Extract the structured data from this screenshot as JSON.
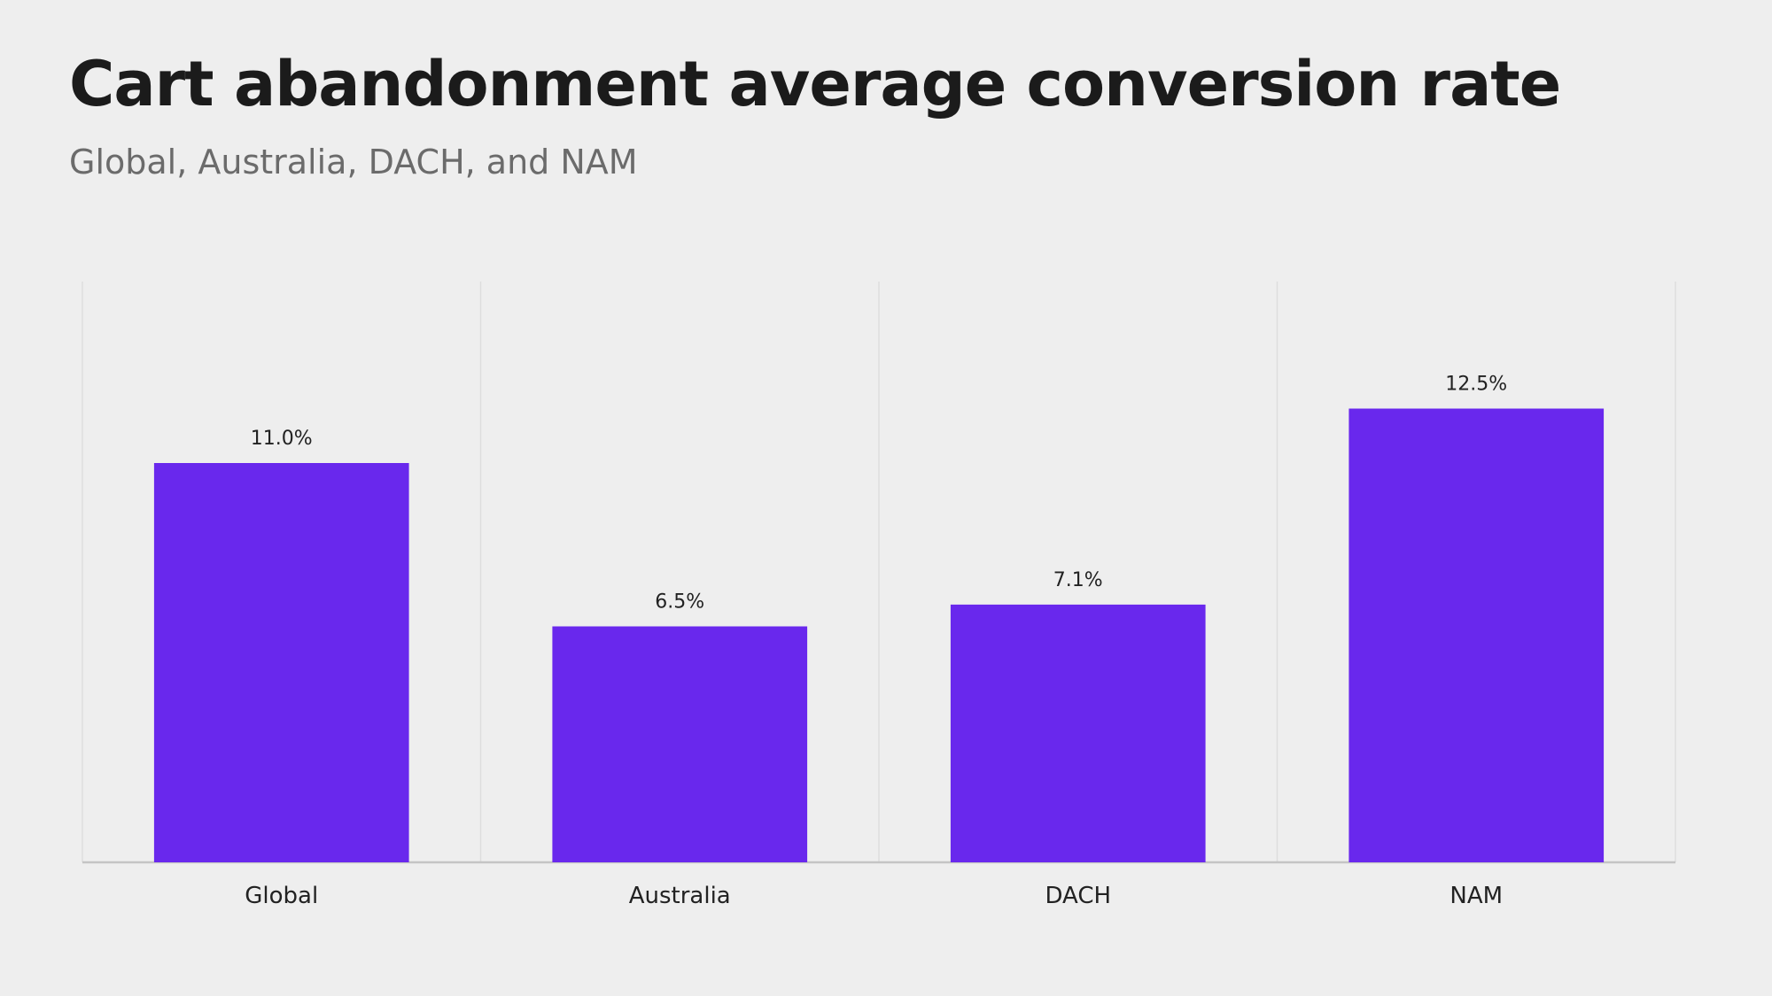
{
  "chart_data": {
    "type": "bar",
    "title": "Cart abandonment average conversion rate",
    "subtitle": "Global, Australia, DACH, and NAM",
    "categories": [
      "Global",
      "Australia",
      "DACH",
      "NAM"
    ],
    "values": [
      11.0,
      6.5,
      7.1,
      12.5
    ],
    "value_labels": [
      "11.0%",
      "6.5%",
      "7.1%",
      "12.5%"
    ],
    "unit": "%",
    "xlabel": "",
    "ylabel": "",
    "ylim": [
      0,
      16
    ],
    "grid": "vertical",
    "legend": "none",
    "colors": {
      "bar": "#6928ed",
      "background": "#eeeeee",
      "gridline": "#dddddd",
      "baseline": "#c4c4c4"
    }
  }
}
